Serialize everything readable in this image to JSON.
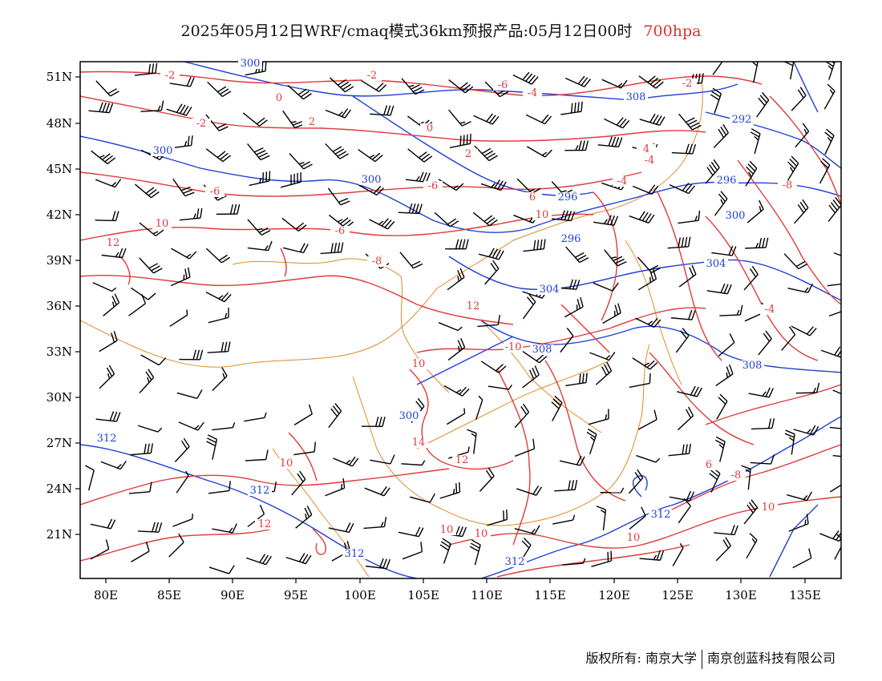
{
  "title": {
    "main": "2025年05月12日WRF/cmaq模式36km预报产品:05月12日00时",
    "level": "700hpa"
  },
  "axes": {
    "lat_labels": [
      "51N",
      "48N",
      "45N",
      "42N",
      "39N",
      "36N",
      "33N",
      "30N",
      "27N",
      "24N",
      "21N"
    ],
    "lon_labels": [
      "80E",
      "85E",
      "90E",
      "95E",
      "100E",
      "105E",
      "110E",
      "115E",
      "120E",
      "125E",
      "130E",
      "135E"
    ]
  },
  "temperature_labels": [
    "-2",
    "-2",
    "-6",
    "-4",
    "-2",
    "0",
    "-2",
    "2",
    "0",
    "2",
    "4",
    "-4",
    "-6",
    "-6",
    "-4",
    "6",
    "-8",
    "-6",
    "10",
    "-8",
    "12",
    "12",
    "10",
    "-10",
    "10",
    "-4",
    "14",
    "10",
    "12",
    "6",
    "-8",
    "12",
    "10",
    "10",
    "10",
    "10"
  ],
  "height_labels": [
    "300",
    "308",
    "300",
    "296",
    "300",
    "296",
    "300",
    "304",
    "304",
    "308",
    "308",
    "292",
    "300",
    "312",
    "312",
    "312",
    "312",
    "312",
    "296"
  ],
  "colors": {
    "temperature": "#e03a3a",
    "height": "#1f3fd8",
    "boundary": "#e08a2a",
    "wind": "#000000"
  },
  "footer": {
    "copyright": "版权所有: 南京大学",
    "company": "南京创蓝科技有限公司"
  }
}
